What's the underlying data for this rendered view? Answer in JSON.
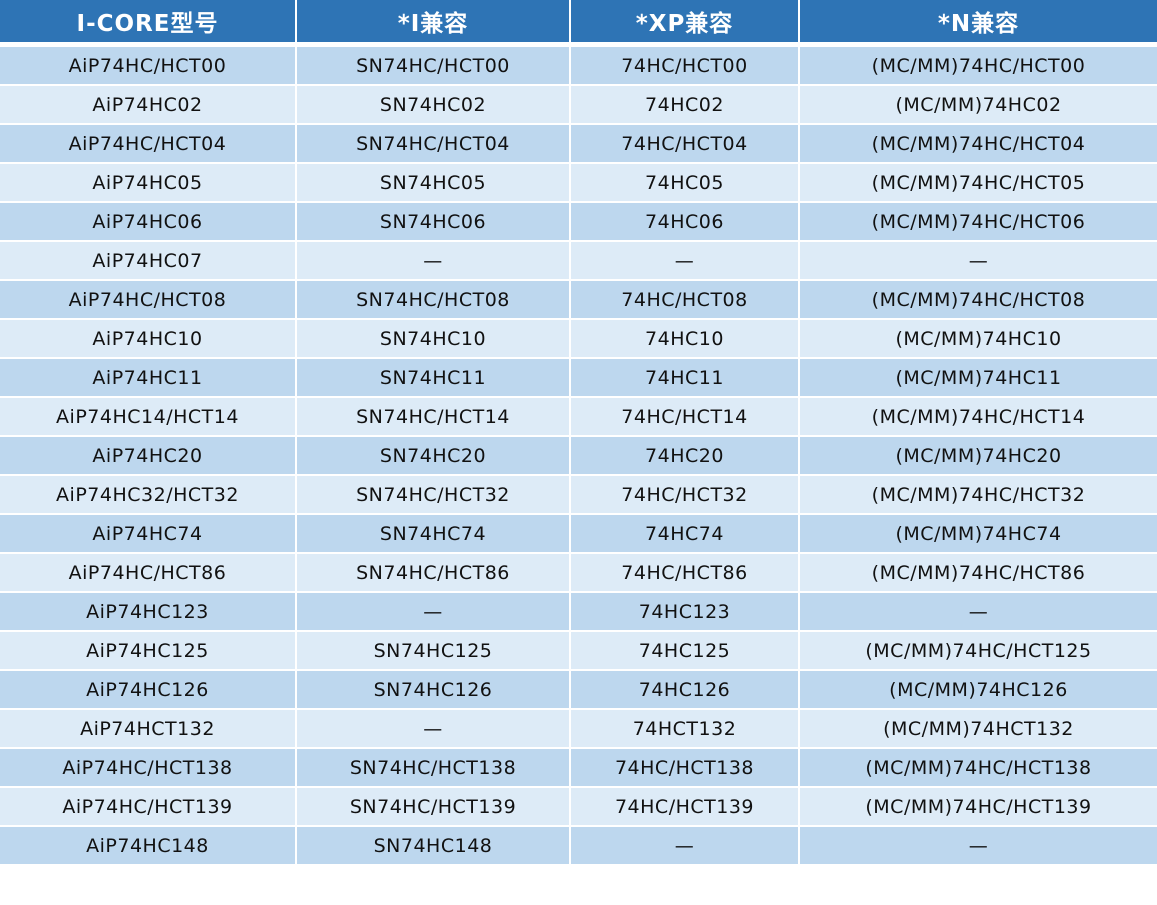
{
  "colors": {
    "header": "#2E74B5",
    "row_odd": "#BDD7EE",
    "row_even": "#DDEBF7"
  },
  "headers": [
    "I-CORE型号",
    "*I兼容",
    "*XP兼容",
    "*N兼容"
  ],
  "rows": [
    [
      "AiP74HC/HCT00",
      "SN74HC/HCT00",
      "74HC/HCT00",
      "(MC/MM)74HC/HCT00"
    ],
    [
      "AiP74HC02",
      "SN74HC02",
      "74HC02",
      "(MC/MM)74HC02"
    ],
    [
      "AiP74HC/HCT04",
      "SN74HC/HCT04",
      "74HC/HCT04",
      "(MC/MM)74HC/HCT04"
    ],
    [
      "AiP74HC05",
      "SN74HC05",
      "74HC05",
      "(MC/MM)74HC/HCT05"
    ],
    [
      "AiP74HC06",
      "SN74HC06",
      "74HC06",
      "(MC/MM)74HC/HCT06"
    ],
    [
      "AiP74HC07",
      "—",
      "—",
      "—"
    ],
    [
      "AiP74HC/HCT08",
      "SN74HC/HCT08",
      "74HC/HCT08",
      "(MC/MM)74HC/HCT08"
    ],
    [
      "AiP74HC10",
      "SN74HC10",
      "74HC10",
      "(MC/MM)74HC10"
    ],
    [
      "AiP74HC11",
      "SN74HC11",
      "74HC11",
      "(MC/MM)74HC11"
    ],
    [
      "AiP74HC14/HCT14",
      "SN74HC/HCT14",
      "74HC/HCT14",
      "(MC/MM)74HC/HCT14"
    ],
    [
      "AiP74HC20",
      "SN74HC20",
      "74HC20",
      "(MC/MM)74HC20"
    ],
    [
      "AiP74HC32/HCT32",
      "SN74HC/HCT32",
      "74HC/HCT32",
      "(MC/MM)74HC/HCT32"
    ],
    [
      "AiP74HC74",
      "SN74HC74",
      "74HC74",
      "(MC/MM)74HC74"
    ],
    [
      "AiP74HC/HCT86",
      "SN74HC/HCT86",
      "74HC/HCT86",
      "(MC/MM)74HC/HCT86"
    ],
    [
      "AiP74HC123",
      "—",
      "74HC123",
      "—"
    ],
    [
      "AiP74HC125",
      "SN74HC125",
      "74HC125",
      "(MC/MM)74HC/HCT125"
    ],
    [
      "AiP74HC126",
      "SN74HC126",
      "74HC126",
      "(MC/MM)74HC126"
    ],
    [
      "AiP74HCT132",
      "—",
      "74HCT132",
      "(MC/MM)74HCT132"
    ],
    [
      "AiP74HC/HCT138",
      "SN74HC/HCT138",
      "74HC/HCT138",
      "(MC/MM)74HC/HCT138"
    ],
    [
      "AiP74HC/HCT139",
      "SN74HC/HCT139",
      "74HC/HCT139",
      "(MC/MM)74HC/HCT139"
    ],
    [
      "AiP74HC148",
      "SN74HC148",
      "—",
      "—"
    ]
  ]
}
